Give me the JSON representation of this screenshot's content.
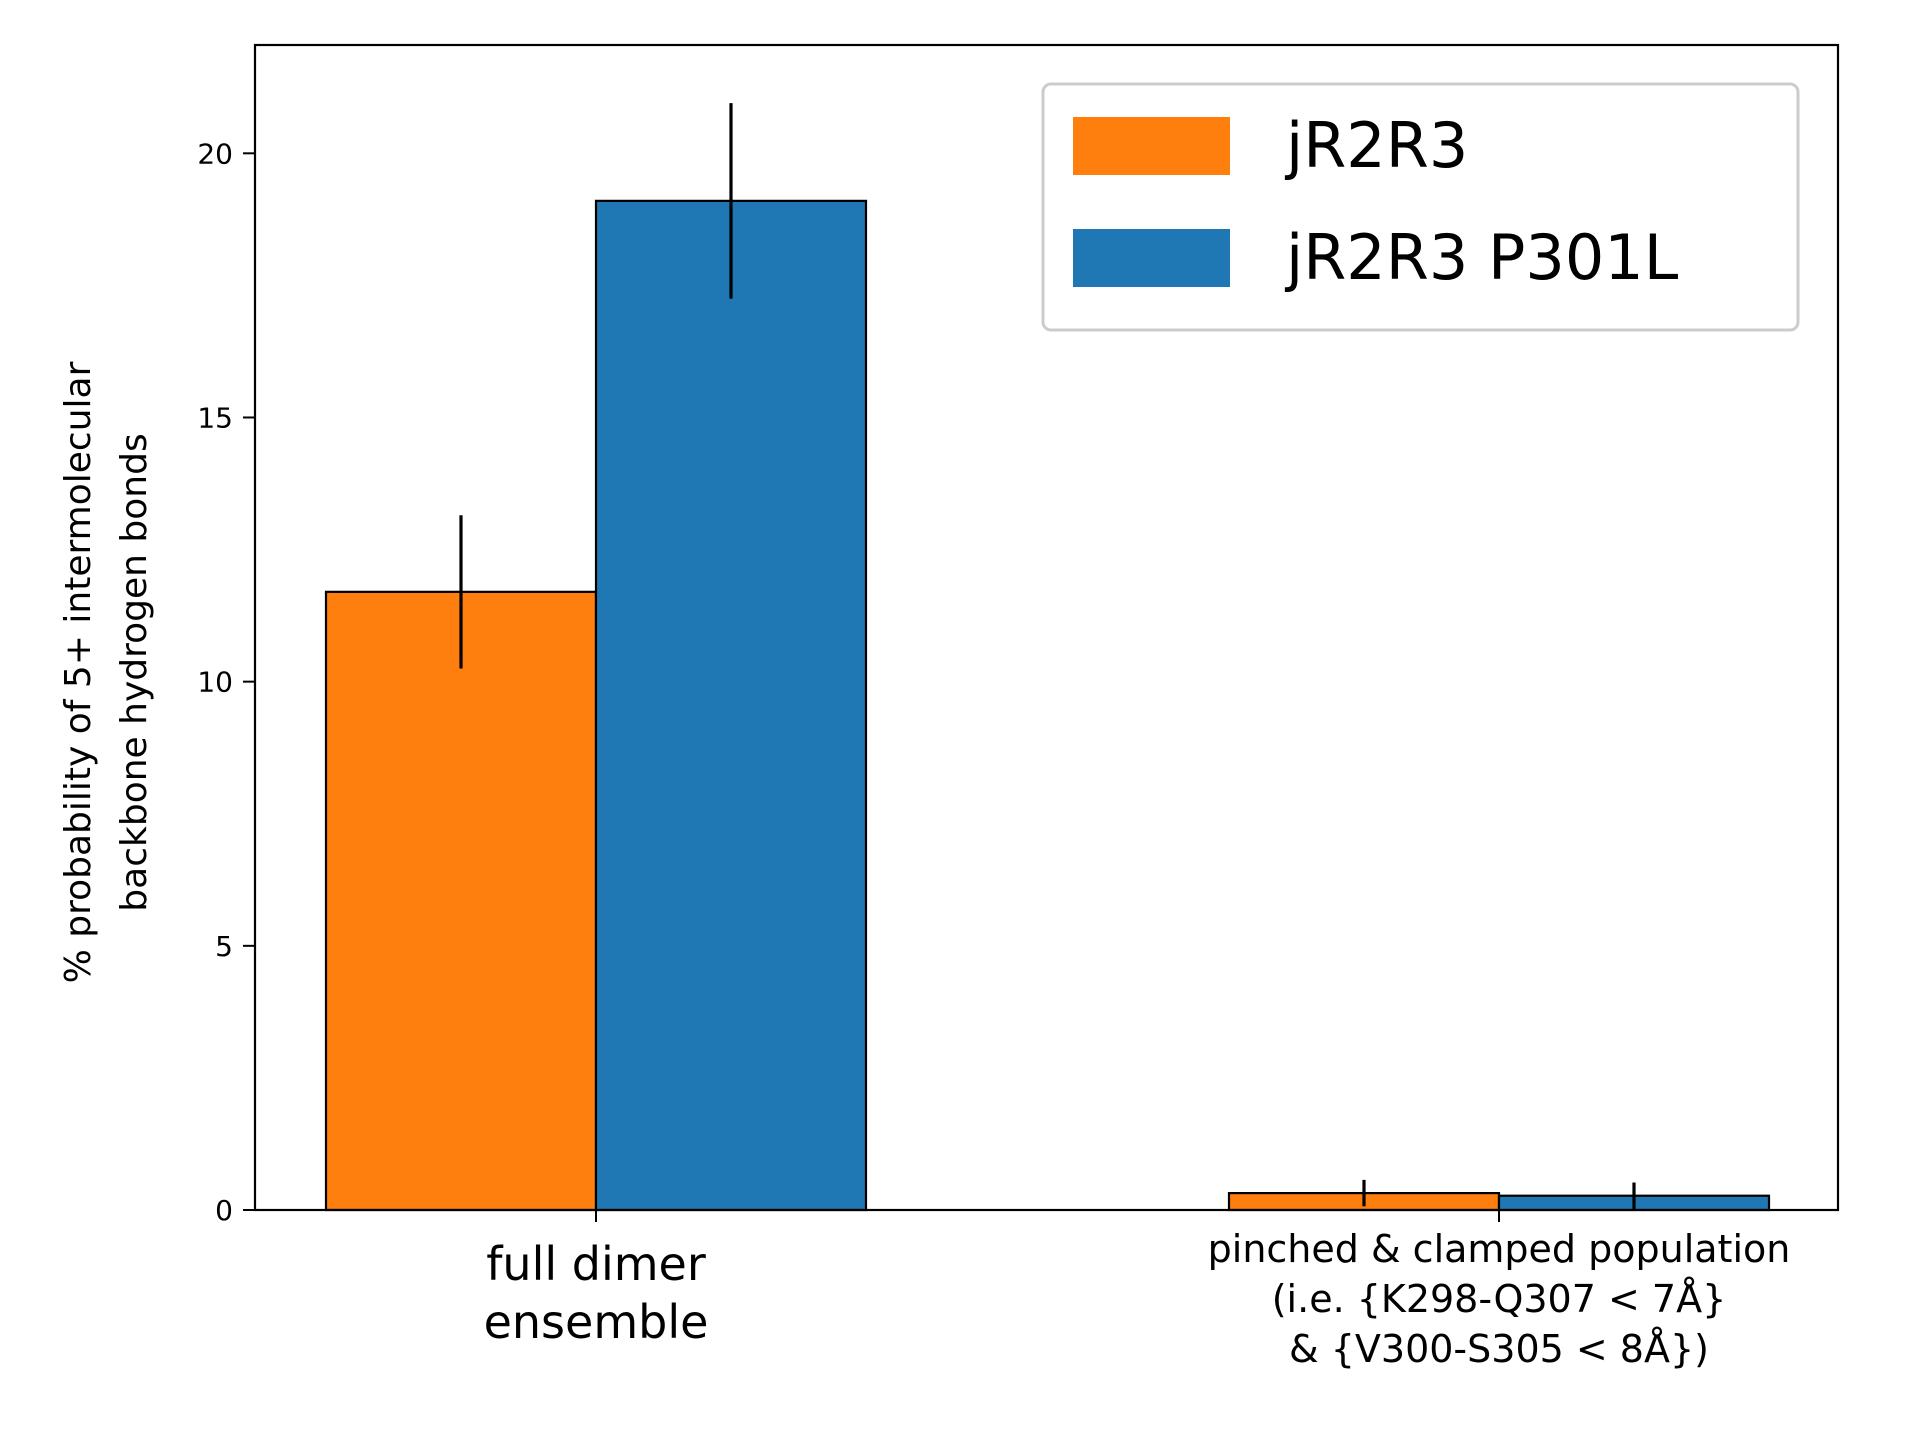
{
  "chart_data": {
    "type": "bar",
    "categories": [
      [
        "full dimer",
        "ensemble"
      ],
      [
        "pinched & clamped population",
        "(i.e. {K298-Q307 < 7Å}",
        "& {V300-S305 < 8Å})"
      ]
    ],
    "series": [
      {
        "name": "jR2R3",
        "color": "#ff7f0e",
        "values": [
          11.7,
          0.32
        ],
        "errors": [
          1.45,
          0.25
        ]
      },
      {
        "name": "jR2R3 P301L",
        "color": "#1f77b4",
        "values": [
          19.1,
          0.27
        ],
        "errors": [
          1.85,
          0.25
        ]
      }
    ],
    "ylabel": [
      "% probability of 5+ intermolecular",
      "backbone hydrogen bonds"
    ],
    "ylim": [
      0,
      22.05
    ],
    "yticks": [
      0,
      5,
      10,
      15,
      20
    ],
    "ytick_labels": [
      "0",
      "5",
      "10",
      "15",
      "20"
    ],
    "grid": false,
    "legend": "top-right"
  }
}
